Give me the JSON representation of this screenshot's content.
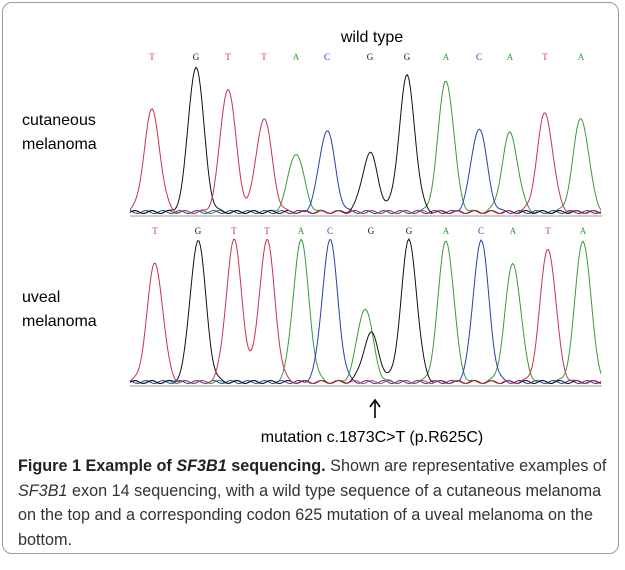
{
  "figure": {
    "top_title": "wild type",
    "panels": [
      {
        "label_lines": [
          "cutaneous",
          "melanoma"
        ],
        "bases": [
          "T",
          "G",
          "T",
          "T",
          "A",
          "C",
          "G",
          "G",
          "A",
          "C",
          "A",
          "T",
          "A"
        ]
      },
      {
        "label_lines": [
          "uveal",
          "melanoma"
        ],
        "bases": [
          "T",
          "G",
          "T",
          "T",
          "A",
          "C",
          "G",
          "G",
          "A",
          "C",
          "A",
          "T",
          "A"
        ]
      }
    ],
    "mutation": "mutation c.1873C>T (p.R625C)",
    "caption": {
      "bold_parts": [
        "Figure 1 Example of ",
        "SF3B1",
        " sequencing."
      ],
      "text_parts": [
        " Shown are representative examples of ",
        "SF3B1",
        " exon 14 sequencing, with a wild type sequence of a cutaneous melanoma on the top and a corresponding codon 625 mutation of a uveal melanoma on the bottom."
      ]
    }
  }
}
